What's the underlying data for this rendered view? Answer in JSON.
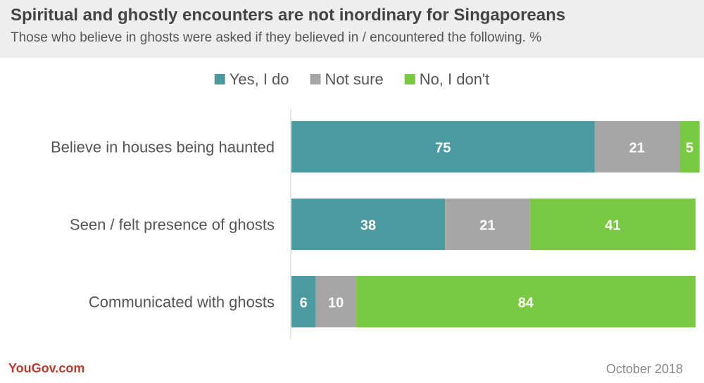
{
  "header": {
    "title": "Spiritual and ghostly encounters are not inordinary for Singaporeans",
    "subtitle": "Those who believe in ghosts were asked if they believed in / encountered the following. %"
  },
  "footer": {
    "source": "YouGov.com",
    "date": "October 2018"
  },
  "chart_data": {
    "type": "bar",
    "orientation": "horizontal",
    "stacked": true,
    "xlim": [
      0,
      100
    ],
    "categories": [
      "Believe in houses being haunted",
      "Seen / felt presence of ghosts",
      "Communicated with ghosts"
    ],
    "series": [
      {
        "name": "Yes, I do",
        "color": "#4a9ba0",
        "values": [
          75,
          38,
          6
        ]
      },
      {
        "name": "Not sure",
        "color": "#a6a6a6",
        "values": [
          21,
          21,
          10
        ]
      },
      {
        "name": "No, I don't",
        "color": "#7ac943",
        "values": [
          5,
          41,
          84
        ]
      }
    ],
    "legend_position": "top",
    "grid": false
  }
}
